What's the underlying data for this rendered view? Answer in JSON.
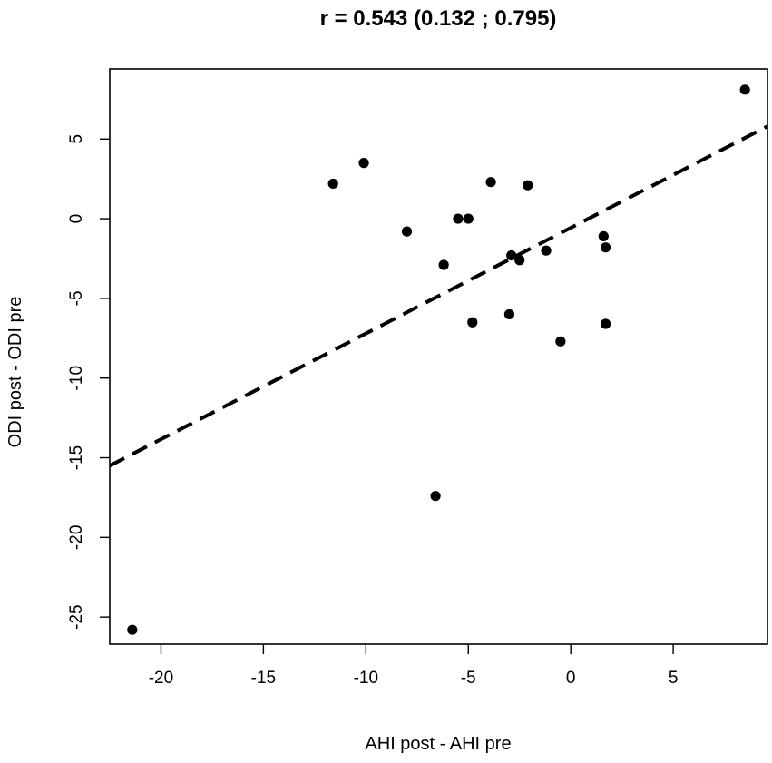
{
  "chart_data": {
    "type": "scatter",
    "title": "r = 0.543 (0.132 ; 0.795)",
    "xlabel": "AHI post - AHI pre",
    "ylabel": "ODI post - ODI pre",
    "xlim": [
      -22.5,
      9.6
    ],
    "ylim": [
      -26.7,
      9.4
    ],
    "grid": false,
    "x_ticks": [
      -20,
      -15,
      -10,
      -5,
      0,
      5
    ],
    "y_ticks": [
      5,
      0,
      -5,
      -10,
      -15,
      -20,
      -25
    ],
    "x_tick_labels": [
      "-20",
      "-15",
      "-10",
      "-5",
      "0",
      "5"
    ],
    "y_tick_labels": [
      "5",
      "0",
      "-5",
      "-10",
      "-15",
      "-20",
      "-25"
    ],
    "points": [
      {
        "x": -21.4,
        "y": -25.8
      },
      {
        "x": -11.6,
        "y": 2.2
      },
      {
        "x": -10.1,
        "y": 3.5
      },
      {
        "x": -8.0,
        "y": -0.8
      },
      {
        "x": -6.6,
        "y": -17.4
      },
      {
        "x": -6.2,
        "y": -2.9
      },
      {
        "x": -5.5,
        "y": 0.0
      },
      {
        "x": -5.0,
        "y": 0.0
      },
      {
        "x": -4.8,
        "y": -6.5
      },
      {
        "x": -3.9,
        "y": 2.3
      },
      {
        "x": -3.0,
        "y": -6.0
      },
      {
        "x": -2.9,
        "y": -2.3
      },
      {
        "x": -2.5,
        "y": -2.6
      },
      {
        "x": -2.1,
        "y": 2.1
      },
      {
        "x": -1.2,
        "y": -2.0
      },
      {
        "x": -0.5,
        "y": -7.7
      },
      {
        "x": 1.6,
        "y": -1.1
      },
      {
        "x": 1.7,
        "y": -1.8
      },
      {
        "x": 1.7,
        "y": -6.6
      },
      {
        "x": 8.5,
        "y": 8.1
      }
    ],
    "fit_line": {
      "style": "dashed",
      "x": [
        -22.5,
        9.6
      ],
      "y": [
        -15.5,
        5.8
      ]
    }
  }
}
